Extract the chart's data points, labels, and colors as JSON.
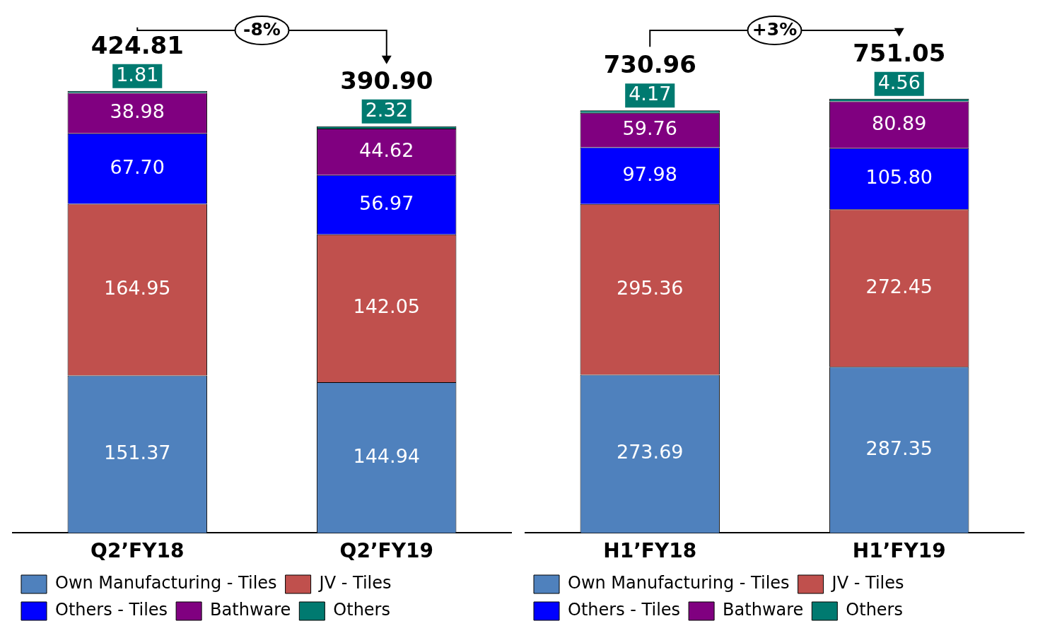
{
  "chart_data": [
    {
      "type": "bar",
      "stacked": true,
      "legend": "bottom",
      "categories": [
        "Q2’FY18",
        "Q2’FY19"
      ],
      "totals": [
        "424.81",
        "390.90"
      ],
      "annotations": [
        "-8%"
      ],
      "series": [
        {
          "name": "Own Manufacturing - Tiles",
          "color": "#4f81bd",
          "values": [
            151.37,
            144.94
          ],
          "value_labels": [
            "151.37",
            "144.94"
          ]
        },
        {
          "name": "JV - Tiles",
          "color": "#c0504d",
          "values": [
            164.95,
            142.05
          ],
          "value_labels": [
            "164.95",
            "142.05"
          ]
        },
        {
          "name": "Others - Tiles",
          "color": "#0000ff",
          "values": [
            67.7,
            56.97
          ],
          "value_labels": [
            "67.70",
            "56.97"
          ]
        },
        {
          "name": "Bathware",
          "color": "#800080",
          "values": [
            38.98,
            44.62
          ],
          "value_labels": [
            "38.98",
            "44.62"
          ]
        },
        {
          "name": "Others",
          "color": "#007a70",
          "values": [
            1.81,
            2.32
          ],
          "value_labels": [
            "1.81",
            "2.32"
          ]
        }
      ]
    },
    {
      "type": "bar",
      "stacked": true,
      "legend": "bottom",
      "categories": [
        "H1’FY18",
        "H1’FY19"
      ],
      "totals": [
        "730.96",
        "751.05"
      ],
      "annotations": [
        "+3%"
      ],
      "series": [
        {
          "name": "Own Manufacturing - Tiles",
          "color": "#4f81bd",
          "values": [
            273.69,
            287.35
          ],
          "value_labels": [
            "273.69",
            "287.35"
          ]
        },
        {
          "name": "JV - Tiles",
          "color": "#c0504d",
          "values": [
            295.36,
            272.45
          ],
          "value_labels": [
            "295.36",
            "272.45"
          ]
        },
        {
          "name": "Others - Tiles",
          "color": "#0000ff",
          "values": [
            97.98,
            105.8
          ],
          "value_labels": [
            "97.98",
            "105.80"
          ]
        },
        {
          "name": "Bathware",
          "color": "#800080",
          "values": [
            59.76,
            80.89
          ],
          "value_labels": [
            "59.76",
            "80.89"
          ]
        },
        {
          "name": "Others",
          "color": "#007a70",
          "values": [
            4.17,
            4.56
          ],
          "value_labels": [
            "4.17",
            "4.56"
          ]
        }
      ]
    }
  ]
}
